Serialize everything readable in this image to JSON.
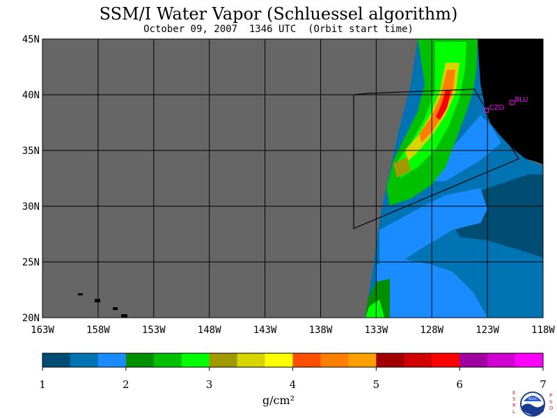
{
  "title": "SSM/I Water Vapor (Schluessel algorithm)",
  "subtitle": "October 09, 2007  1346 UTC  (Orbit start time)",
  "units_label": "g/cm²",
  "logo_text": {
    "left": "ESRL",
    "right": "PSD",
    "center": "NOAA"
  },
  "map": {
    "lat_labels": [
      "45N",
      "40N",
      "35N",
      "30N",
      "25N",
      "20N"
    ],
    "lon_labels": [
      "163W",
      "158W",
      "153W",
      "148W",
      "143W",
      "138W",
      "133W",
      "128W",
      "123W",
      "118W"
    ],
    "lat_range": [
      20,
      45
    ],
    "lon_range": [
      -163,
      -118
    ],
    "stations": [
      {
        "name": "CZD",
        "lon": -123.1,
        "lat": 38.6
      },
      {
        "name": "BLU",
        "lon": -120.8,
        "lat": 39.3
      }
    ],
    "colors": {
      "no_data": "#666666",
      "land": "#000000",
      "station": "#ff00ff"
    }
  },
  "colorbar": {
    "tick_labels": [
      "1",
      "2",
      "3",
      "4",
      "5",
      "6",
      "7"
    ],
    "range": [
      1,
      7
    ],
    "colors": [
      "#004d73",
      "#0073b3",
      "#1a8cff",
      "#008f00",
      "#00c000",
      "#00ff00",
      "#a09a00",
      "#d8d400",
      "#ffff00",
      "#ff4f00",
      "#ff7f00",
      "#ffa000",
      "#a00000",
      "#d00000",
      "#ff0000",
      "#a000a0",
      "#d000d0",
      "#ff00ff"
    ]
  }
}
